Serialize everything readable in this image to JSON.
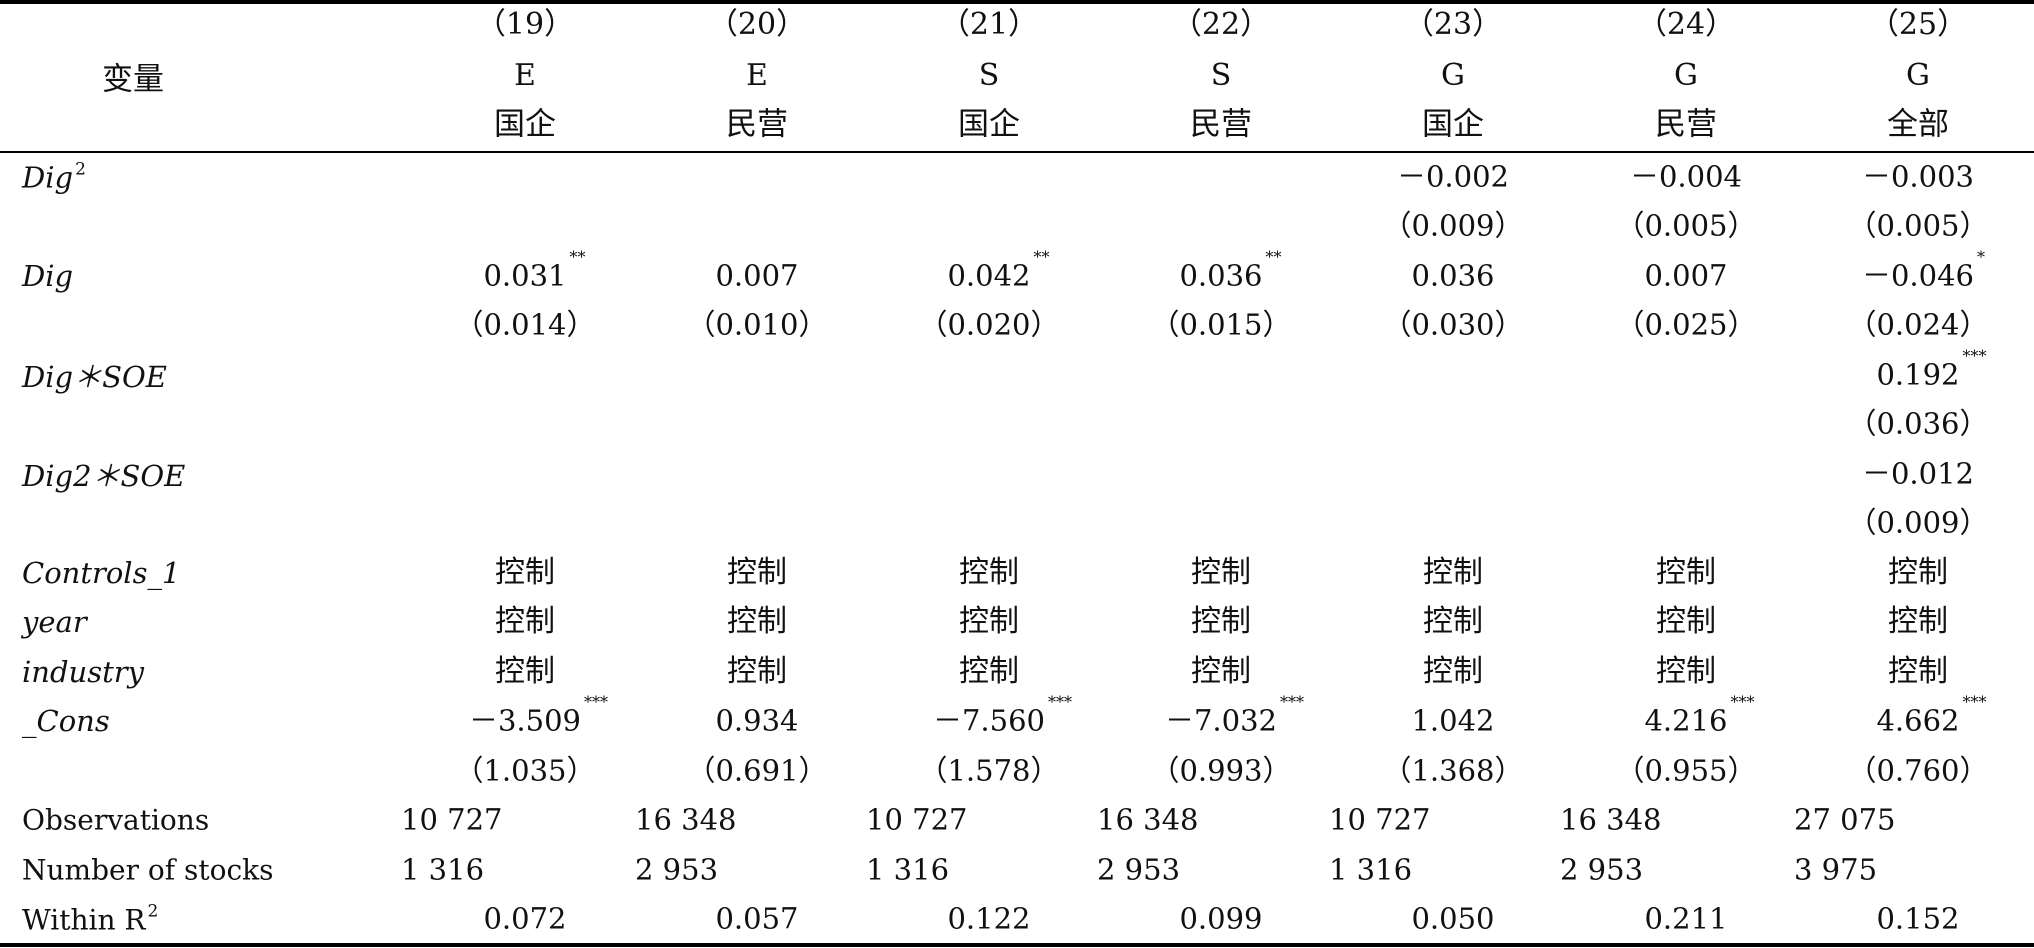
{
  "header": {
    "variable_label": "变量",
    "columns": [
      {
        "number": "（19）",
        "type": "E",
        "group": "国企"
      },
      {
        "number": "（20）",
        "type": "E",
        "group": "民营"
      },
      {
        "number": "（21）",
        "type": "S",
        "group": "国企"
      },
      {
        "number": "（22）",
        "type": "S",
        "group": "民营"
      },
      {
        "number": "（23）",
        "type": "G",
        "group": "国企"
      },
      {
        "number": "（24）",
        "type": "G",
        "group": "民营"
      },
      {
        "number": "（25）",
        "type": "G",
        "group": "全部"
      }
    ]
  },
  "rows": [
    {
      "label": "Dig",
      "label_sup": "2",
      "italic": true,
      "cells": [
        "",
        "",
        "",
        "",
        "－0.002",
        "－0.004",
        "－0.003"
      ],
      "stars": [
        "",
        "",
        "",
        "",
        "",
        "",
        ""
      ]
    },
    {
      "label": "",
      "cells": [
        "",
        "",
        "",
        "",
        "（0.009）",
        "（0.005）",
        "（0.005）"
      ]
    },
    {
      "label": "Dig",
      "italic": true,
      "cells": [
        "0.031",
        "0.007",
        "0.042",
        "0.036",
        "0.036",
        "0.007",
        "－0.046"
      ],
      "stars": [
        "**",
        "",
        "**",
        "**",
        "",
        "",
        "*"
      ]
    },
    {
      "label": "",
      "cells": [
        "（0.014）",
        "（0.010）",
        "（0.020）",
        "（0.015）",
        "（0.030）",
        "（0.025）",
        "（0.024）"
      ]
    },
    {
      "label": "Dig＊SOE",
      "italic": true,
      "cells": [
        "",
        "",
        "",
        "",
        "",
        "",
        "0.192"
      ],
      "stars": [
        "",
        "",
        "",
        "",
        "",
        "",
        "***"
      ]
    },
    {
      "label": "",
      "cells": [
        "",
        "",
        "",
        "",
        "",
        "",
        "（0.036）"
      ]
    },
    {
      "label": "Dig2＊SOE",
      "italic": true,
      "cells": [
        "",
        "",
        "",
        "",
        "",
        "",
        "－0.012"
      ]
    },
    {
      "label": "",
      "cells": [
        "",
        "",
        "",
        "",
        "",
        "",
        "（0.009）"
      ]
    },
    {
      "label": "Controls_1",
      "italic": true,
      "cells": [
        "控制",
        "控制",
        "控制",
        "控制",
        "控制",
        "控制",
        "控制"
      ],
      "cjk": true
    },
    {
      "label": "year",
      "italic": true,
      "cells": [
        "控制",
        "控制",
        "控制",
        "控制",
        "控制",
        "控制",
        "控制"
      ],
      "cjk": true
    },
    {
      "label": "industry",
      "italic": true,
      "cells": [
        "控制",
        "控制",
        "控制",
        "控制",
        "控制",
        "控制",
        "控制"
      ],
      "cjk": true
    },
    {
      "label": "_Cons",
      "italic": true,
      "cells": [
        "－3.509",
        "0.934",
        "－7.560",
        "－7.032",
        "1.042",
        "4.216",
        "4.662"
      ],
      "stars": [
        "***",
        "",
        "***",
        "***",
        "",
        "***",
        "***"
      ]
    },
    {
      "label": "",
      "cells": [
        "（1.035）",
        "（0.691）",
        "（1.578）",
        "（0.993）",
        "（1.368）",
        "（0.955）",
        "（0.760）"
      ]
    },
    {
      "label": "Observations",
      "italic": false,
      "cells": [
        "10 727",
        "16 348",
        "10 727",
        "16 348",
        "10 727",
        "16 348",
        "27 075"
      ],
      "counts": true
    },
    {
      "label": "Number of stocks",
      "italic": false,
      "cells": [
        "1 316",
        "2 953",
        "1 316",
        "2 953",
        "1 316",
        "2 953",
        "3 975"
      ],
      "counts": true
    },
    {
      "label": "Within R",
      "label_sup": "2",
      "italic": false,
      "cells": [
        "0.072",
        "0.057",
        "0.122",
        "0.099",
        "0.050",
        "0.211",
        "0.152"
      ]
    }
  ]
}
